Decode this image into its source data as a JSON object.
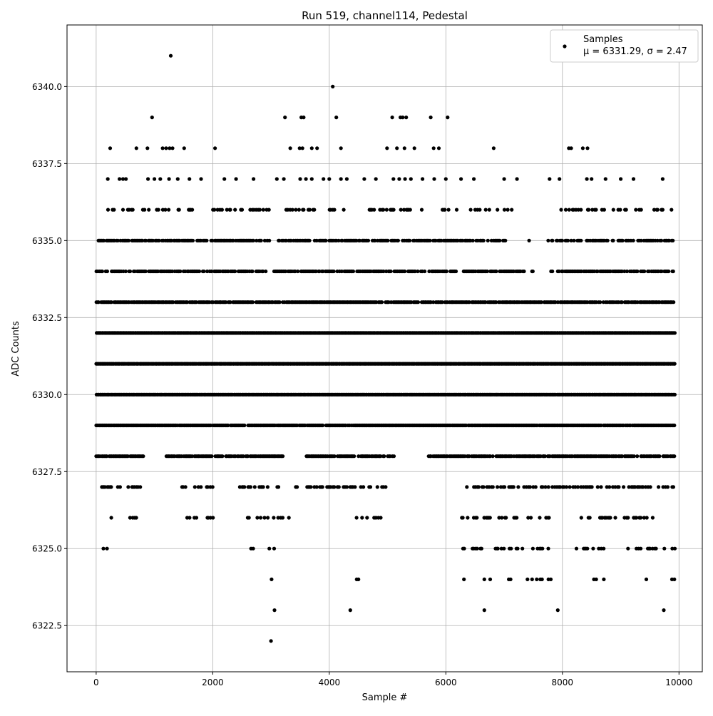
{
  "chart_data": {
    "type": "scatter",
    "title": "Run 519, channel114, Pedestal",
    "xlabel": "Sample #",
    "ylabel": "ADC Counts",
    "xlim": [
      -500,
      10400
    ],
    "ylim": [
      6321.0,
      6342.0
    ],
    "xticks": [
      0,
      2000,
      4000,
      6000,
      8000,
      10000
    ],
    "xtick_labels": [
      "0",
      "2000",
      "4000",
      "6000",
      "8000",
      "10000"
    ],
    "yticks": [
      6322.5,
      6325.0,
      6327.5,
      6330.0,
      6332.5,
      6335.0,
      6337.5,
      6340.0
    ],
    "ytick_labels": [
      "6322.5",
      "6325.0",
      "6327.5",
      "6330.0",
      "6332.5",
      "6335.0",
      "6337.5",
      "6340.0"
    ],
    "grid": true,
    "legend_position": "top-right",
    "marker_color": "#000000",
    "series": [
      {
        "name": "Samples",
        "x": [
          1280,
          4060,
          960,
          3240,
          3520,
          3560,
          4120,
          5080,
          5220,
          5260,
          5320,
          5740,
          6030,
          240,
          690,
          880,
          1140,
          1200,
          1260,
          1310,
          1510,
          2040,
          3330,
          3490,
          3540,
          3700,
          3790,
          4200,
          4990,
          5160,
          5290,
          5460,
          5790,
          5880,
          6820,
          8110,
          8150,
          8350,
          8430,
          200,
          400,
          460,
          510,
          890,
          1000,
          1100,
          1250,
          1400,
          1600,
          1800,
          2200,
          2400,
          2700,
          3100,
          3220,
          3500,
          3600,
          3700,
          3900,
          4000,
          4200,
          4300,
          4600,
          4800,
          5100,
          5200,
          5300,
          5400,
          5600,
          5800,
          6000,
          6260,
          6480,
          7000,
          7220,
          7780,
          7950,
          8420,
          8500,
          8740,
          9000,
          9220,
          9720
        ],
        "y": [
          6341,
          6340,
          6339,
          6339,
          6339,
          6339,
          6339,
          6339,
          6339,
          6339,
          6339,
          6339,
          6339,
          6338,
          6338,
          6338,
          6338,
          6338,
          6338,
          6338,
          6338,
          6338,
          6338,
          6338,
          6338,
          6338,
          6338,
          6338,
          6338,
          6338,
          6338,
          6338,
          6338,
          6338,
          6338,
          6338,
          6338,
          6338,
          6338,
          6337,
          6337,
          6337,
          6337,
          6337,
          6337,
          6337,
          6337,
          6337,
          6337,
          6337,
          6337,
          6337,
          6337,
          6337,
          6337,
          6337,
          6337,
          6337,
          6337,
          6337,
          6337,
          6337,
          6337,
          6337,
          6337,
          6337,
          6337,
          6337,
          6337,
          6337,
          6337,
          6337,
          6337,
          6337,
          6337,
          6337,
          6337,
          6337,
          6337,
          6337,
          6337,
          6337,
          6337
        ]
      }
    ],
    "dense_levels": [
      {
        "y": 6336,
        "segments": [
          [
            0,
            1650
          ],
          [
            2000,
            3000
          ],
          [
            3200,
            4300
          ],
          [
            4600,
            6200
          ],
          [
            6400,
            7200
          ],
          [
            7850,
            9900
          ]
        ],
        "density": 0.3
      },
      {
        "y": 6335,
        "segments": [
          [
            30,
            3000
          ],
          [
            3100,
            7050
          ],
          [
            7400,
            7420
          ],
          [
            7750,
            9900
          ]
        ],
        "density": 0.65
      },
      {
        "y": 6334,
        "segments": [
          [
            0,
            2900
          ],
          [
            3050,
            6200
          ],
          [
            6300,
            7350
          ],
          [
            7450,
            7500
          ],
          [
            7800,
            9900
          ]
        ],
        "density": 0.75
      },
      {
        "y": 6333,
        "segments": [
          [
            0,
            9900
          ]
        ],
        "density": 0.9
      },
      {
        "y": 6332,
        "segments": [
          [
            0,
            9920
          ]
        ],
        "density": 1.0
      },
      {
        "y": 6331,
        "segments": [
          [
            0,
            9920
          ]
        ],
        "density": 1.0
      },
      {
        "y": 6330,
        "segments": [
          [
            0,
            9920
          ]
        ],
        "density": 1.0
      },
      {
        "y": 6329,
        "segments": [
          [
            0,
            9920
          ]
        ],
        "density": 0.95
      },
      {
        "y": 6328,
        "segments": [
          [
            0,
            800
          ],
          [
            1200,
            3200
          ],
          [
            3600,
            5100
          ],
          [
            5700,
            9920
          ]
        ],
        "density": 0.85
      },
      {
        "y": 6327,
        "segments": [
          [
            50,
            900
          ],
          [
            1450,
            2000
          ],
          [
            2400,
            3200
          ],
          [
            3400,
            5000
          ],
          [
            6200,
            9920
          ]
        ],
        "density": 0.4
      },
      {
        "y": 6326,
        "segments": [
          [
            200,
            700
          ],
          [
            1500,
            2000
          ],
          [
            2600,
            3400
          ],
          [
            4400,
            4900
          ],
          [
            6250,
            7800
          ],
          [
            8300,
            9920
          ]
        ],
        "density": 0.3
      },
      {
        "y": 6325,
        "segments": [
          [
            100,
            200
          ],
          [
            1480,
            1500
          ],
          [
            2450,
            2470
          ],
          [
            2630,
            2750
          ],
          [
            2950,
            3050
          ],
          [
            4260,
            4450
          ],
          [
            6230,
            7800
          ],
          [
            8200,
            8700
          ],
          [
            9100,
            9920
          ]
        ],
        "density": 0.35
      }
    ],
    "sparse_points": [
      [
        3010,
        6324
      ],
      [
        4470,
        6324
      ],
      [
        4500,
        6324
      ],
      [
        6310,
        6324
      ],
      [
        6660,
        6324
      ],
      [
        6760,
        6324
      ],
      [
        7080,
        6324
      ],
      [
        7110,
        6324
      ],
      [
        7400,
        6324
      ],
      [
        7480,
        6324
      ],
      [
        7560,
        6324
      ],
      [
        7620,
        6324
      ],
      [
        7650,
        6324
      ],
      [
        7760,
        6324
      ],
      [
        7800,
        6324
      ],
      [
        8540,
        6324
      ],
      [
        8580,
        6324
      ],
      [
        8710,
        6324
      ],
      [
        9440,
        6324
      ],
      [
        9880,
        6324
      ],
      [
        9920,
        6324
      ],
      [
        3060,
        6323
      ],
      [
        4360,
        6323
      ],
      [
        6660,
        6323
      ],
      [
        7920,
        6323
      ],
      [
        9740,
        6323
      ],
      [
        3000,
        6322
      ]
    ]
  },
  "legend": {
    "series_label": "Samples",
    "stats_label": "μ = 6331.29, σ = 2.47"
  }
}
